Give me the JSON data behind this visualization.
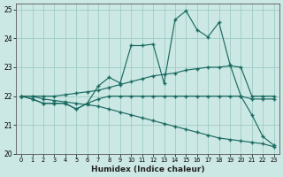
{
  "xlabel": "Humidex (Indice chaleur)",
  "bg_color": "#cce8e4",
  "grid_color": "#9eccc6",
  "line_color": "#1b6b62",
  "xlim_min": -0.5,
  "xlim_max": 23.5,
  "ylim_min": 20,
  "ylim_max": 25.2,
  "yticks": [
    20,
    21,
    22,
    23,
    24,
    25
  ],
  "xticks": [
    0,
    1,
    2,
    3,
    4,
    5,
    6,
    7,
    8,
    9,
    10,
    11,
    12,
    13,
    14,
    15,
    16,
    17,
    18,
    19,
    20,
    21,
    22,
    23
  ],
  "curve_main": [
    22.0,
    21.9,
    21.75,
    21.75,
    21.75,
    21.55,
    21.75,
    22.35,
    22.65,
    22.45,
    23.75,
    23.75,
    23.8,
    22.45,
    24.65,
    24.95,
    24.3,
    24.05,
    24.55,
    23.1,
    22.0,
    21.35,
    20.6,
    20.3
  ],
  "curve_trend_up": [
    22.0,
    22.0,
    22.0,
    22.0,
    22.05,
    22.1,
    22.15,
    22.2,
    22.3,
    22.4,
    22.5,
    22.6,
    22.7,
    22.75,
    22.8,
    22.9,
    22.95,
    23.0,
    23.0,
    23.05,
    23.0,
    22.0,
    22.0,
    22.0
  ],
  "curve_flat": [
    22.0,
    21.9,
    21.75,
    21.75,
    21.75,
    21.55,
    21.75,
    21.9,
    22.0,
    22.0,
    22.0,
    22.0,
    22.0,
    22.0,
    22.0,
    22.0,
    22.0,
    22.0,
    22.0,
    22.0,
    22.0,
    21.9,
    21.9,
    21.9
  ],
  "curve_decline": [
    22.0,
    22.0,
    21.9,
    21.85,
    21.8,
    21.75,
    21.7,
    21.65,
    21.55,
    21.45,
    21.35,
    21.25,
    21.15,
    21.05,
    20.95,
    20.85,
    20.75,
    20.65,
    20.55,
    20.5,
    20.45,
    20.4,
    20.35,
    20.25
  ]
}
